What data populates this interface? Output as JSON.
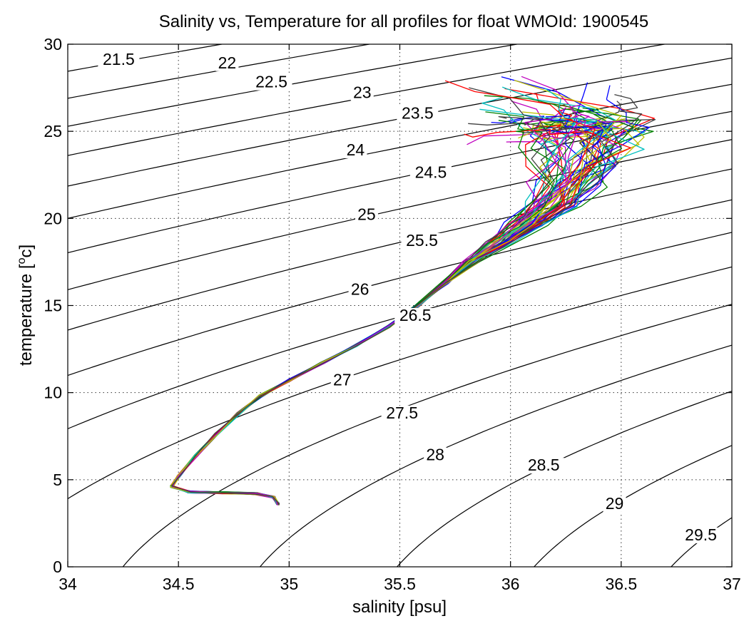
{
  "chart_data": {
    "type": "line",
    "title": "Salinity vs, Temperature for all profiles for float WMOId: 1900545",
    "xlabel": "salinity [psu]",
    "ylabel_main": "temperature [",
    "ylabel_sup": "o",
    "ylabel_tail": "c]",
    "xlim": [
      34,
      37
    ],
    "ylim": [
      0,
      30
    ],
    "x_ticks": [
      34,
      34.5,
      35,
      35.5,
      36,
      36.5,
      37
    ],
    "x_tick_labels": [
      "34",
      "34.5",
      "35",
      "35.5",
      "36",
      "36.5",
      "37"
    ],
    "y_ticks": [
      0,
      5,
      10,
      15,
      20,
      25,
      30
    ],
    "y_tick_labels": [
      "0",
      "5",
      "10",
      "15",
      "20",
      "25",
      "30"
    ],
    "grid": true,
    "density_contours": [
      {
        "level": 21.5,
        "label": "21.5",
        "label_s": 34.23,
        "label_t": 28.9
      },
      {
        "level": 22,
        "label": "22",
        "label_s": 34.72,
        "label_t": 28.7
      },
      {
        "level": 22.5,
        "label": "22.5",
        "label_s": 34.92,
        "label_t": 27.6
      },
      {
        "level": 23,
        "label": "23",
        "label_s": 35.33,
        "label_t": 27.0
      },
      {
        "level": 23.5,
        "label": "23.5",
        "label_s": 35.58,
        "label_t": 25.8
      },
      {
        "level": 24,
        "label": "24",
        "label_s": 35.3,
        "label_t": 23.7
      },
      {
        "level": 24.5,
        "label": "24.5",
        "label_s": 35.64,
        "label_t": 22.4
      },
      {
        "level": 25,
        "label": "25",
        "label_s": 35.35,
        "label_t": 20.0
      },
      {
        "level": 25.5,
        "label": "25.5",
        "label_s": 35.6,
        "label_t": 18.5
      },
      {
        "level": 26,
        "label": "26",
        "label_s": 35.32,
        "label_t": 15.7
      },
      {
        "level": 26.5,
        "label": "26.5",
        "label_s": 35.57,
        "label_t": 14.2
      },
      {
        "level": 27,
        "label": "27",
        "label_s": 35.24,
        "label_t": 10.5
      },
      {
        "level": 27.5,
        "label": "27.5",
        "label_s": 35.51,
        "label_t": 8.6
      },
      {
        "level": 28,
        "label": "28",
        "label_s": 35.66,
        "label_t": 6.2
      },
      {
        "level": 28.5,
        "label": "28.5",
        "label_s": 36.15,
        "label_t": 5.6
      },
      {
        "level": 29,
        "label": "29",
        "label_s": 36.47,
        "label_t": 3.4
      },
      {
        "level": 29.5,
        "label": "29.5",
        "label_s": 36.86,
        "label_t": 1.6
      }
    ],
    "series_colors": [
      "#0000ff",
      "#008000",
      "#ff0000",
      "#00bfbf",
      "#bf00bf",
      "#bfbf00",
      "#404040"
    ],
    "profile_count": 56,
    "profile_backbone": [
      [
        34.95,
        3.6
      ],
      [
        34.93,
        4.0
      ],
      [
        34.85,
        4.2
      ],
      [
        34.7,
        4.25
      ],
      [
        34.55,
        4.3
      ],
      [
        34.47,
        4.6
      ],
      [
        34.5,
        5.2
      ],
      [
        34.58,
        6.4
      ],
      [
        34.67,
        7.6
      ],
      [
        34.77,
        8.8
      ],
      [
        34.87,
        9.8
      ],
      [
        35.0,
        10.7
      ],
      [
        35.15,
        11.7
      ],
      [
        35.3,
        12.7
      ],
      [
        35.45,
        13.8
      ],
      [
        35.58,
        15.0
      ],
      [
        35.7,
        16.3
      ],
      [
        35.82,
        17.5
      ],
      [
        35.95,
        18.6
      ],
      [
        36.07,
        19.7
      ],
      [
        36.18,
        20.8
      ],
      [
        36.25,
        22.0
      ],
      [
        36.3,
        23.2
      ],
      [
        36.33,
        24.4
      ],
      [
        36.35,
        25.4
      ]
    ]
  }
}
